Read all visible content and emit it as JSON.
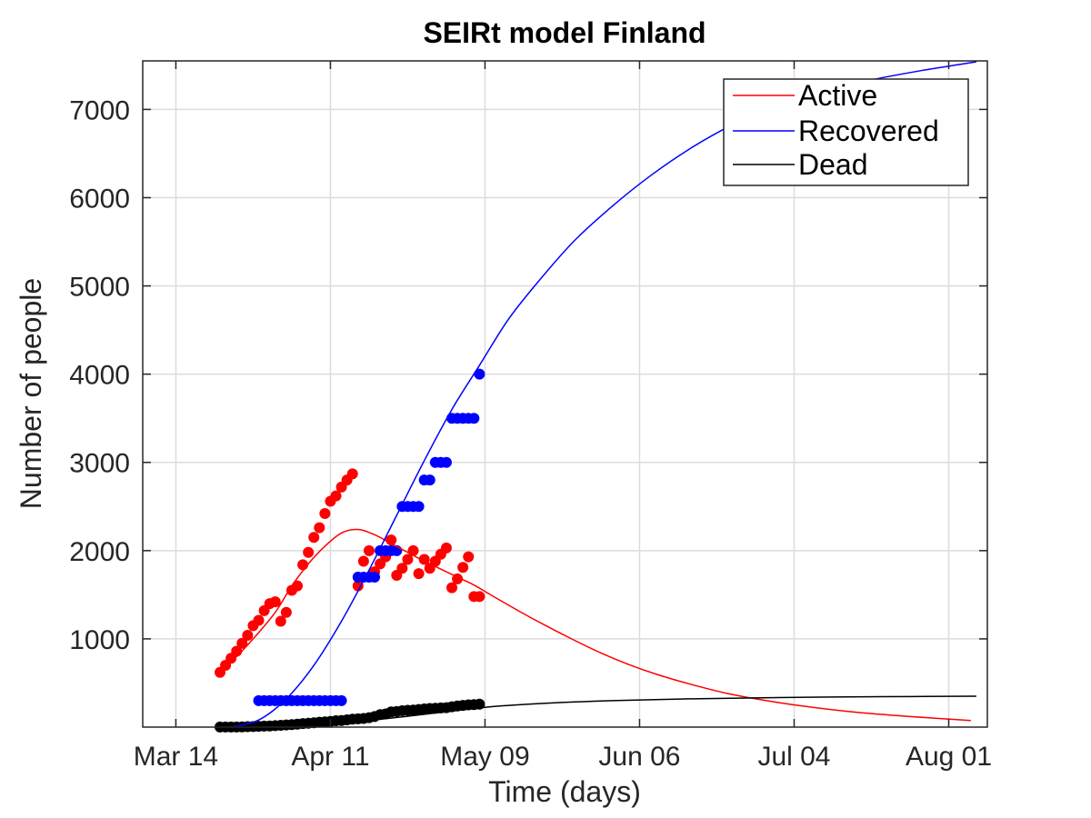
{
  "chart_data": {
    "type": "line",
    "title": "SEIRt model Finland",
    "xlabel": "Time (days)",
    "ylabel": "Number of people",
    "x_type": "date",
    "xlim": [
      "2020-03-08",
      "2020-08-08"
    ],
    "ylim": [
      0,
      7550
    ],
    "x_ticks": [
      {
        "date": "2020-03-14",
        "label": "Mar 14"
      },
      {
        "date": "2020-04-11",
        "label": "Apr 11"
      },
      {
        "date": "2020-05-09",
        "label": "May 09"
      },
      {
        "date": "2020-06-06",
        "label": "Jun 06"
      },
      {
        "date": "2020-07-04",
        "label": "Jul 04"
      },
      {
        "date": "2020-08-01",
        "label": "Aug 01"
      }
    ],
    "y_ticks": [
      {
        "value": 1000,
        "label": "1000"
      },
      {
        "value": 2000,
        "label": "2000"
      },
      {
        "value": 3000,
        "label": "3000"
      },
      {
        "value": 4000,
        "label": "4000"
      },
      {
        "value": 5000,
        "label": "5000"
      },
      {
        "value": 6000,
        "label": "6000"
      },
      {
        "value": 7000,
        "label": "7000"
      }
    ],
    "grid": true,
    "legend_position": "top-right",
    "series": [
      {
        "name": "Active",
        "kind": "line",
        "color": "#ff0000",
        "x": [
          "2020-03-22",
          "2020-03-25",
          "2020-03-28",
          "2020-04-01",
          "2020-04-04",
          "2020-04-07",
          "2020-04-10",
          "2020-04-13",
          "2020-04-16",
          "2020-04-19",
          "2020-04-22",
          "2020-04-25",
          "2020-04-28",
          "2020-05-01",
          "2020-05-04",
          "2020-05-07",
          "2020-05-10",
          "2020-05-15",
          "2020-05-20",
          "2020-05-25",
          "2020-05-30",
          "2020-06-04",
          "2020-06-09",
          "2020-06-15",
          "2020-06-22",
          "2020-06-29",
          "2020-07-06",
          "2020-07-15",
          "2020-07-25",
          "2020-08-05"
        ],
        "y": [
          640,
          800,
          1000,
          1300,
          1600,
          1850,
          2050,
          2200,
          2240,
          2180,
          2080,
          1980,
          1880,
          1790,
          1700,
          1610,
          1500,
          1320,
          1150,
          990,
          840,
          710,
          600,
          490,
          380,
          300,
          235,
          170,
          120,
          75
        ]
      },
      {
        "name": "Recovered",
        "kind": "line",
        "color": "#0000ff",
        "x": [
          "2020-03-24",
          "2020-03-29",
          "2020-04-03",
          "2020-04-08",
          "2020-04-13",
          "2020-04-18",
          "2020-04-23",
          "2020-04-28",
          "2020-05-03",
          "2020-05-08",
          "2020-05-13",
          "2020-05-18",
          "2020-05-25",
          "2020-06-01",
          "2020-06-08",
          "2020-06-15",
          "2020-06-22",
          "2020-06-29",
          "2020-07-06",
          "2020-07-13",
          "2020-07-20",
          "2020-07-27",
          "2020-08-03",
          "2020-08-06"
        ],
        "y": [
          0,
          80,
          320,
          700,
          1200,
          1780,
          2400,
          3020,
          3600,
          4100,
          4600,
          5000,
          5500,
          5900,
          6250,
          6550,
          6800,
          7000,
          7150,
          7270,
          7360,
          7440,
          7510,
          7540
        ]
      },
      {
        "name": "Dead",
        "kind": "line",
        "color": "#000000",
        "x": [
          "2020-03-22",
          "2020-03-30",
          "2020-04-10",
          "2020-04-20",
          "2020-04-30",
          "2020-05-10",
          "2020-05-20",
          "2020-06-01",
          "2020-06-15",
          "2020-07-01",
          "2020-07-20",
          "2020-08-06"
        ],
        "y": [
          0,
          10,
          40,
          90,
          160,
          230,
          270,
          300,
          320,
          335,
          345,
          350
        ]
      },
      {
        "kind": "scatter",
        "color": "#ff0000",
        "x": [
          "2020-03-22",
          "2020-03-23",
          "2020-03-24",
          "2020-03-25",
          "2020-03-26",
          "2020-03-27",
          "2020-03-28",
          "2020-03-29",
          "2020-03-30",
          "2020-03-31",
          "2020-04-01",
          "2020-04-02",
          "2020-04-03",
          "2020-04-04",
          "2020-04-05",
          "2020-04-06",
          "2020-04-07",
          "2020-04-08",
          "2020-04-09",
          "2020-04-10",
          "2020-04-11",
          "2020-04-12",
          "2020-04-13",
          "2020-04-14",
          "2020-04-15",
          "2020-04-16",
          "2020-04-17",
          "2020-04-18",
          "2020-04-19",
          "2020-04-20",
          "2020-04-21",
          "2020-04-22",
          "2020-04-23",
          "2020-04-24",
          "2020-04-25",
          "2020-04-26",
          "2020-04-27",
          "2020-04-28",
          "2020-04-29",
          "2020-04-30",
          "2020-05-01",
          "2020-05-02",
          "2020-05-03",
          "2020-05-04",
          "2020-05-05",
          "2020-05-06",
          "2020-05-07",
          "2020-05-08"
        ],
        "y": [
          620,
          700,
          780,
          860,
          950,
          1040,
          1150,
          1210,
          1320,
          1400,
          1420,
          1200,
          1300,
          1550,
          1600,
          1840,
          1980,
          2150,
          2260,
          2420,
          2560,
          2620,
          2720,
          2800,
          2870,
          1600,
          1880,
          2000,
          1760,
          1850,
          1930,
          2120,
          1720,
          1800,
          1900,
          2000,
          1740,
          1900,
          1800,
          1880,
          1960,
          2030,
          1580,
          1680,
          1810,
          1930,
          1480,
          1480
        ]
      },
      {
        "kind": "scatter",
        "color": "#0000ff",
        "x": [
          "2020-03-29",
          "2020-03-30",
          "2020-03-31",
          "2020-04-01",
          "2020-04-02",
          "2020-04-03",
          "2020-04-04",
          "2020-04-05",
          "2020-04-06",
          "2020-04-07",
          "2020-04-08",
          "2020-04-09",
          "2020-04-10",
          "2020-04-11",
          "2020-04-12",
          "2020-04-13",
          "2020-04-16",
          "2020-04-17",
          "2020-04-18",
          "2020-04-19",
          "2020-04-20",
          "2020-04-21",
          "2020-04-22",
          "2020-04-23",
          "2020-04-24",
          "2020-04-25",
          "2020-04-26",
          "2020-04-27",
          "2020-04-28",
          "2020-04-29",
          "2020-04-30",
          "2020-05-01",
          "2020-05-02",
          "2020-05-03",
          "2020-05-04",
          "2020-05-05",
          "2020-05-06",
          "2020-05-07",
          "2020-05-08"
        ],
        "y": [
          300,
          300,
          300,
          300,
          300,
          300,
          300,
          300,
          300,
          300,
          300,
          300,
          300,
          300,
          300,
          300,
          1700,
          1700,
          1700,
          1700,
          2000,
          2000,
          2000,
          2000,
          2500,
          2500,
          2500,
          2500,
          2800,
          2800,
          3000,
          3000,
          3000,
          3500,
          3500,
          3500,
          3500,
          3500,
          4000
        ]
      },
      {
        "kind": "scatter",
        "color": "#000000",
        "x": [
          "2020-03-22",
          "2020-03-23",
          "2020-03-24",
          "2020-03-25",
          "2020-03-26",
          "2020-03-27",
          "2020-03-28",
          "2020-03-29",
          "2020-03-30",
          "2020-03-31",
          "2020-04-01",
          "2020-04-02",
          "2020-04-03",
          "2020-04-04",
          "2020-04-05",
          "2020-04-06",
          "2020-04-07",
          "2020-04-08",
          "2020-04-09",
          "2020-04-10",
          "2020-04-11",
          "2020-04-12",
          "2020-04-13",
          "2020-04-14",
          "2020-04-15",
          "2020-04-16",
          "2020-04-17",
          "2020-04-18",
          "2020-04-19",
          "2020-04-20",
          "2020-04-21",
          "2020-04-22",
          "2020-04-23",
          "2020-04-24",
          "2020-04-25",
          "2020-04-26",
          "2020-04-27",
          "2020-04-28",
          "2020-04-29",
          "2020-04-30",
          "2020-05-01",
          "2020-05-02",
          "2020-05-03",
          "2020-05-04",
          "2020-05-05",
          "2020-05-06",
          "2020-05-07",
          "2020-05-08"
        ],
        "y": [
          1,
          1,
          1,
          1,
          3,
          5,
          7,
          9,
          11,
          13,
          17,
          20,
          25,
          28,
          34,
          40,
          44,
          49,
          56,
          59,
          64,
          72,
          75,
          82,
          90,
          94,
          98,
          107,
          120,
          141,
          149,
          172,
          177,
          186,
          190,
          193,
          199,
          206,
          211,
          214,
          218,
          220,
          230,
          240,
          246,
          252,
          255,
          260
        ]
      }
    ]
  }
}
